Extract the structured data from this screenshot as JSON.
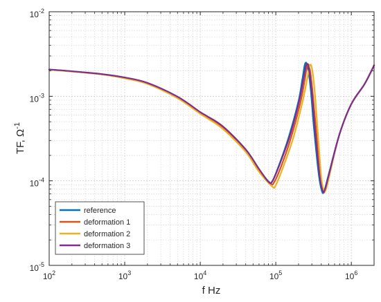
{
  "chart_data": {
    "type": "line",
    "xscale": "log",
    "yscale": "log",
    "xlim": [
      100,
      2000000
    ],
    "ylim": [
      1e-05,
      0.01
    ],
    "xlabel": "f  Hz",
    "ylabel": "TF, Ω",
    "ylabel_superscript": "-1",
    "grid": true,
    "legend_position": "bottom-left",
    "x_ticks": [
      {
        "base": "10",
        "exp": "2",
        "value": 100
      },
      {
        "base": "10",
        "exp": "3",
        "value": 1000
      },
      {
        "base": "10",
        "exp": "4",
        "value": 10000
      },
      {
        "base": "10",
        "exp": "5",
        "value": 100000
      },
      {
        "base": "10",
        "exp": "6",
        "value": 1000000
      }
    ],
    "y_ticks": [
      {
        "base": "10",
        "exp": "-5",
        "value": 1e-05
      },
      {
        "base": "10",
        "exp": "-4",
        "value": 0.0001
      },
      {
        "base": "10",
        "exp": "-3",
        "value": 0.001
      },
      {
        "base": "10",
        "exp": "-2",
        "value": 0.01
      }
    ],
    "series": [
      {
        "name": "reference",
        "color": "#0072bd",
        "points": [
          [
            100,
            0.00207
          ],
          [
            200,
            0.00197
          ],
          [
            500,
            0.00182
          ],
          [
            1000,
            0.00166
          ],
          [
            2000,
            0.00143
          ],
          [
            5000,
            0.00098
          ],
          [
            10000,
            0.00064
          ],
          [
            12000,
            0.00058
          ],
          [
            20000,
            0.00043
          ],
          [
            40000,
            0.00023
          ],
          [
            60000,
            0.000136
          ],
          [
            80000,
            9.85e-05
          ],
          [
            90000,
            9.9e-05
          ],
          [
            110000,
            0.000152
          ],
          [
            150000,
            0.00034
          ],
          [
            200000,
            0.00088
          ],
          [
            225000,
            0.0016
          ],
          [
            245000,
            0.00245
          ],
          [
            265000,
            0.0022
          ],
          [
            290000,
            0.0012
          ],
          [
            320000,
            0.00042
          ],
          [
            370000,
            0.00012
          ],
          [
            410000,
            7.45e-05
          ],
          [
            440000,
            7.7e-05
          ],
          [
            500000,
            0.000118
          ],
          [
            700000,
            0.00036
          ],
          [
            1000000,
            0.00081
          ],
          [
            1500000,
            0.0014
          ],
          [
            2000000,
            0.00232
          ]
        ]
      },
      {
        "name": "deformation 1",
        "color": "#d95319",
        "points": [
          [
            100,
            0.00207
          ],
          [
            200,
            0.00197
          ],
          [
            500,
            0.00182
          ],
          [
            1000,
            0.00165
          ],
          [
            2000,
            0.00142
          ],
          [
            5000,
            0.00097
          ],
          [
            10000,
            0.00063
          ],
          [
            12000,
            0.00057
          ],
          [
            20000,
            0.00042
          ],
          [
            40000,
            0.000225
          ],
          [
            60000,
            0.000132
          ],
          [
            85000,
            9.35e-05
          ],
          [
            95000,
            9.6e-05
          ],
          [
            120000,
            0.000155
          ],
          [
            160000,
            0.00033
          ],
          [
            210000,
            0.00082
          ],
          [
            240000,
            0.0015
          ],
          [
            262000,
            0.00235
          ],
          [
            282000,
            0.0021
          ],
          [
            305000,
            0.0012
          ],
          [
            340000,
            0.00042
          ],
          [
            390000,
            0.00012
          ],
          [
            425000,
            7.55e-05
          ],
          [
            455000,
            7.9e-05
          ],
          [
            510000,
            0.00012
          ],
          [
            700000,
            0.00036
          ],
          [
            1000000,
            0.00081
          ],
          [
            1500000,
            0.0014
          ],
          [
            2000000,
            0.00232
          ]
        ]
      },
      {
        "name": "deformation 2",
        "color": "#edb120",
        "points": [
          [
            100,
            0.00206
          ],
          [
            200,
            0.00196
          ],
          [
            500,
            0.00181
          ],
          [
            1000,
            0.00163
          ],
          [
            2000,
            0.0014
          ],
          [
            5000,
            0.00095
          ],
          [
            10000,
            0.00062
          ],
          [
            12000,
            0.00056
          ],
          [
            20000,
            0.00041
          ],
          [
            40000,
            0.00022
          ],
          [
            60000,
            0.000128
          ],
          [
            90000,
            8.55e-05
          ],
          [
            100000,
            8.9e-05
          ],
          [
            125000,
            0.000145
          ],
          [
            170000,
            0.00032
          ],
          [
            225000,
            0.00085
          ],
          [
            260000,
            0.0016
          ],
          [
            285000,
            0.00235
          ],
          [
            305000,
            0.002
          ],
          [
            330000,
            0.00105
          ],
          [
            360000,
            0.00037
          ],
          [
            400000,
            0.00011
          ],
          [
            435000,
            7.7e-05
          ],
          [
            465000,
            8.1e-05
          ],
          [
            520000,
            0.000122
          ],
          [
            700000,
            0.00036
          ],
          [
            1000000,
            0.00081
          ],
          [
            1500000,
            0.0014
          ],
          [
            2000000,
            0.00232
          ]
        ]
      },
      {
        "name": "deformation 3",
        "color": "#7e2f8e",
        "points": [
          [
            100,
            0.00208
          ],
          [
            200,
            0.00198
          ],
          [
            500,
            0.00183
          ],
          [
            1000,
            0.00167
          ],
          [
            2000,
            0.00144
          ],
          [
            5000,
            0.00099
          ],
          [
            10000,
            0.00065
          ],
          [
            12000,
            0.00059
          ],
          [
            20000,
            0.00044
          ],
          [
            40000,
            0.000235
          ],
          [
            60000,
            0.000138
          ],
          [
            80000,
            9.75e-05
          ],
          [
            90000,
            9.85e-05
          ],
          [
            112000,
            0.000155
          ],
          [
            155000,
            0.00035
          ],
          [
            205000,
            0.0009
          ],
          [
            235000,
            0.0017
          ],
          [
            255000,
            0.0024
          ],
          [
            275000,
            0.0021
          ],
          [
            300000,
            0.0011
          ],
          [
            330000,
            0.0004
          ],
          [
            380000,
            0.000115
          ],
          [
            418000,
            7.6e-05
          ],
          [
            448000,
            7.9e-05
          ],
          [
            505000,
            0.000119
          ],
          [
            700000,
            0.00036
          ],
          [
            1000000,
            0.00081
          ],
          [
            1500000,
            0.0014
          ],
          [
            2000000,
            0.00232
          ]
        ]
      }
    ]
  }
}
